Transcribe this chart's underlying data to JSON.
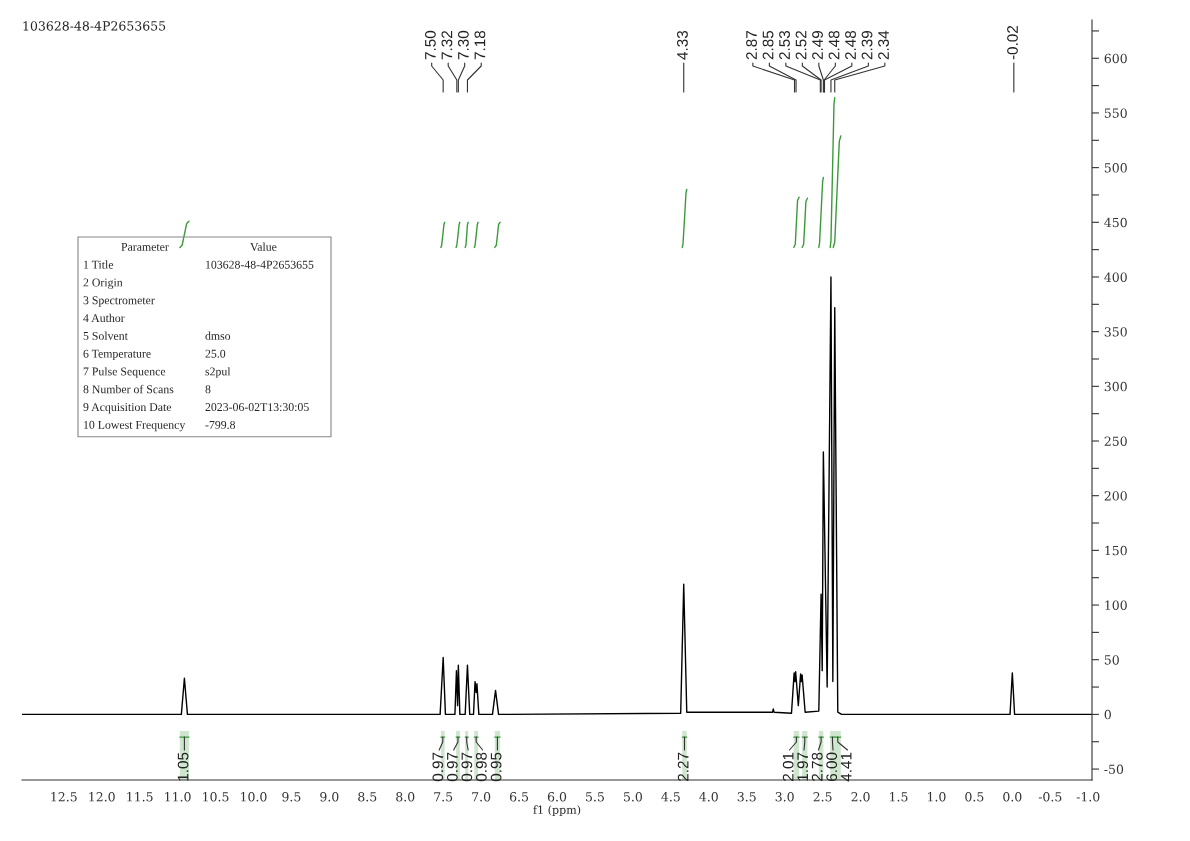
{
  "chart_data": {
    "type": "line",
    "title": "103628-48-4P2653655",
    "xlabel": "f1 (ppm)",
    "xlim": [
      13.05,
      -1.05
    ],
    "ylim": [
      -60,
      635
    ],
    "xticks": [
      12.5,
      {
        "value": 12,
        "label": "12.0"
      },
      11.5,
      {
        "value": 11,
        "label": "11.0"
      },
      10.5,
      {
        "value": 10,
        "label": "10.0"
      },
      9.5,
      {
        "value": 9,
        "label": "9.0"
      },
      8.5,
      {
        "value": 8,
        "label": "8.0"
      },
      7.5,
      {
        "value": 7,
        "label": "7.0"
      },
      6.5,
      {
        "value": 6,
        "label": "6.0"
      },
      5.5,
      {
        "value": 5,
        "label": "5.0"
      },
      4.5,
      {
        "value": 4,
        "label": "4.0"
      },
      3.5,
      {
        "value": 3,
        "label": "3.0"
      },
      2.5,
      {
        "value": 2,
        "label": "2.0"
      },
      1.5,
      {
        "value": 1,
        "label": "1.0"
      },
      0.5,
      {
        "value": 0,
        "label": "0.0"
      },
      -0.5,
      {
        "value": -1,
        "label": "-1.0"
      }
    ],
    "yticks": [
      -50,
      0,
      50,
      100,
      150,
      200,
      250,
      300,
      350,
      400,
      450,
      500,
      550,
      600,
      {
        "value": -25,
        "label": null
      },
      {
        "value": 25,
        "label": null
      },
      {
        "value": 75,
        "label": null
      },
      {
        "value": 125,
        "label": null
      },
      {
        "value": 175,
        "label": null
      },
      {
        "value": 225,
        "label": null
      },
      {
        "value": 275,
        "label": null
      },
      {
        "value": 325,
        "label": null
      },
      {
        "value": 375,
        "label": null
      },
      {
        "value": 425,
        "label": null
      },
      {
        "value": 475,
        "label": null
      },
      {
        "value": 525,
        "label": null
      },
      {
        "value": 575,
        "label": null
      },
      {
        "value": 625,
        "label": null
      }
    ],
    "series": [
      {
        "color": "#000000",
        "x": [
          13.05,
          10.95,
          10.91,
          10.87,
          7.54,
          7.5,
          7.47,
          7.345,
          7.325,
          7.31,
          7.3,
          7.28,
          7.21,
          7.18,
          7.15,
          7.1,
          7.08,
          7.065,
          7.055,
          7.03,
          6.85,
          6.81,
          6.77,
          4.37,
          4.33,
          4.29,
          3.16,
          3.15,
          3.14,
          2.91,
          2.875,
          2.865,
          2.855,
          2.82,
          2.79,
          2.78,
          2.77,
          2.73,
          2.55,
          2.52,
          2.505,
          2.49,
          2.44,
          2.39,
          2.365,
          2.34,
          2.3,
          2.25,
          0.03,
          0.0,
          -0.03,
          -1.05
        ],
        "values": [
          0,
          0,
          33,
          0,
          0,
          52,
          0,
          0,
          40,
          8,
          45,
          0,
          0,
          45,
          0,
          0,
          30,
          20,
          28,
          0,
          0,
          22,
          0,
          1,
          119,
          2,
          2,
          5,
          2,
          1,
          38,
          30,
          39,
          8,
          37,
          30,
          36,
          2,
          3,
          110,
          40,
          240,
          25,
          400,
          30,
          372,
          2,
          0,
          0,
          38,
          0,
          0
        ]
      },
      {
        "color": "#3a9a3a",
        "x": [
          10.97,
          10.94,
          10.91,
          10.88,
          10.85
        ],
        "values": [
          427,
          429,
          439,
          449,
          451
        ]
      },
      {
        "color": "#3a9a3a",
        "x": [
          7.53,
          7.52,
          7.505,
          7.49,
          7.48
        ],
        "values": [
          427,
          429,
          438,
          448,
          450
        ]
      },
      {
        "color": "#3a9a3a",
        "x": [
          7.33,
          7.32,
          7.305,
          7.29,
          7.28
        ],
        "values": [
          427,
          429,
          438,
          448,
          450
        ]
      },
      {
        "color": "#3a9a3a",
        "x": [
          7.21,
          7.2,
          7.19,
          7.18,
          7.17
        ],
        "values": [
          427,
          429,
          438,
          448,
          450
        ]
      },
      {
        "color": "#3a9a3a",
        "x": [
          7.09,
          7.08,
          7.065,
          7.05,
          7.04
        ],
        "values": [
          427,
          429,
          438,
          448,
          450
        ]
      },
      {
        "color": "#3a9a3a",
        "x": [
          6.82,
          6.8,
          6.785,
          6.77,
          6.75
        ],
        "values": [
          427,
          429,
          438,
          448,
          450
        ]
      },
      {
        "color": "#3a9a3a",
        "x": [
          4.35,
          4.34,
          4.32,
          4.3,
          4.29
        ],
        "values": [
          427,
          430,
          453,
          477,
          480
        ]
      },
      {
        "color": "#3a9a3a",
        "x": [
          2.88,
          2.86,
          2.845,
          2.83,
          2.81
        ],
        "values": [
          427,
          430,
          450,
          470,
          473
        ]
      },
      {
        "color": "#3a9a3a",
        "x": [
          2.77,
          2.75,
          2.735,
          2.72,
          2.7
        ],
        "values": [
          427,
          430,
          449,
          469,
          472
        ]
      },
      {
        "color": "#3a9a3a",
        "x": [
          2.55,
          2.54,
          2.52,
          2.5,
          2.49
        ],
        "values": [
          427,
          431,
          459,
          487,
          491
        ]
      },
      {
        "color": "#3a9a3a",
        "x": [
          2.4,
          2.39,
          2.37,
          2.35,
          2.34
        ],
        "values": [
          427,
          433,
          495,
          558,
          564
        ]
      },
      {
        "color": "#3a9a3a",
        "x": [
          2.36,
          2.34,
          2.31,
          2.28,
          2.26
        ],
        "values": [
          427,
          432,
          478,
          524,
          529
        ]
      }
    ],
    "bands": [
      {
        "axis": "x",
        "from": 10.97,
        "to": 10.85,
        "label": "1.05",
        "color": "#3a9a3a"
      },
      {
        "axis": "x",
        "from": 7.53,
        "to": 7.48,
        "label": "0.97",
        "color": "#3a9a3a"
      },
      {
        "axis": "x",
        "from": 7.33,
        "to": 7.28,
        "label": "0.97",
        "color": "#3a9a3a"
      },
      {
        "axis": "x",
        "from": 7.21,
        "to": 7.17,
        "label": "0.97",
        "color": "#3a9a3a"
      },
      {
        "axis": "x",
        "from": 7.09,
        "to": 7.04,
        "label": "0.98",
        "color": "#3a9a3a"
      },
      {
        "axis": "x",
        "from": 6.82,
        "to": 6.75,
        "label": "0.95",
        "color": "#3a9a3a"
      },
      {
        "axis": "x",
        "from": 4.35,
        "to": 4.29,
        "label": "2.27",
        "color": "#3a9a3a"
      },
      {
        "axis": "x",
        "from": 2.88,
        "to": 2.81,
        "label": "2.01",
        "color": "#3a9a3a"
      },
      {
        "axis": "x",
        "from": 2.77,
        "to": 2.7,
        "label": "1.97",
        "color": "#3a9a3a"
      },
      {
        "axis": "x",
        "from": 2.55,
        "to": 2.49,
        "label": "2.78",
        "color": "#3a9a3a"
      },
      {
        "axis": "x",
        "from": 2.4,
        "to": 2.34,
        "label": "6.00",
        "color": "#3a9a3a"
      },
      {
        "axis": "x",
        "from": 2.34,
        "to": 2.26,
        "label": "4.41",
        "color": "#3a9a3a"
      }
    ],
    "annotations": [
      {
        "text": "7.50",
        "x": 7.5
      },
      {
        "text": "7.32",
        "x": 7.32
      },
      {
        "text": "7.30",
        "x": 7.3
      },
      {
        "text": "7.18",
        "x": 7.18
      },
      {
        "text": "4.33",
        "x": 4.33
      },
      {
        "text": "2.87",
        "x": 2.87
      },
      {
        "text": "2.85",
        "x": 2.85
      },
      {
        "text": "2.53",
        "x": 2.53
      },
      {
        "text": "2.52",
        "x": 2.52
      },
      {
        "text": "2.49",
        "x": 2.49
      },
      {
        "text": "2.48",
        "x": 2.48
      },
      {
        "text": "2.48",
        "x": 2.475
      },
      {
        "text": "2.39",
        "x": 2.39
      },
      {
        "text": "2.34",
        "x": 2.34
      },
      {
        "text": "-0.02",
        "x": -0.02
      },
      "Parameter\tValue",
      "1 Title\t103628-48-4P2653655",
      "2 Origin",
      "3 Spectrometer",
      "4 Author",
      "5 Solvent\tdmso",
      "6 Temperature\t25.0",
      "7 Pulse Sequence\ts2pul",
      "8 Number of Scans\t8",
      "9 Acquisition Date\t2023-06-02T13:30:05",
      "10 Lowest Frequency\t-799.8"
    ]
  }
}
